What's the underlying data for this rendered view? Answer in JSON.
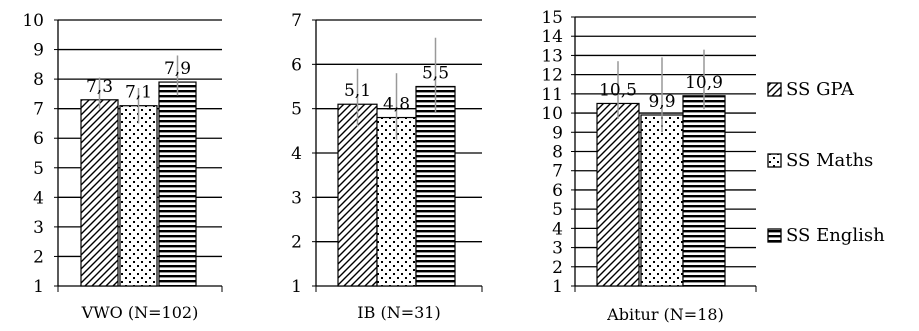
{
  "chart_data": [
    {
      "type": "bar",
      "categories": [
        "SS GPA",
        "SS Maths",
        "SS English"
      ],
      "values": [
        7.3,
        7.1,
        7.9
      ],
      "value_labels": [
        "7,3",
        "7,1",
        "7,9"
      ],
      "xlabel": "VWO (N=102)",
      "ylim": [
        1,
        10
      ],
      "yticks": [
        "1",
        "2",
        "3",
        "4",
        "5",
        "6",
        "7",
        "8",
        "9",
        "10"
      ],
      "error_bars": true,
      "grid": true
    },
    {
      "type": "bar",
      "categories": [
        "SS GPA",
        "SS Maths",
        "SS English"
      ],
      "values": [
        5.1,
        4.8,
        5.5
      ],
      "value_labels": [
        "5,1",
        "4,8",
        "5,5"
      ],
      "xlabel": "IB (N=31)",
      "ylim": [
        1,
        7
      ],
      "yticks": [
        "1",
        "2",
        "3",
        "4",
        "5",
        "6",
        "7"
      ],
      "error_bars": true,
      "grid": true
    },
    {
      "type": "bar",
      "categories": [
        "SS GPA",
        "SS Maths",
        "SS English"
      ],
      "values": [
        10.5,
        9.9,
        10.9
      ],
      "value_labels": [
        "10,5",
        "9,9",
        "10,9"
      ],
      "xlabel": "Abitur (N=18)",
      "ylim": [
        1,
        15
      ],
      "yticks": [
        "1",
        "2",
        "3",
        "4",
        "5",
        "6",
        "7",
        "8",
        "9",
        "10",
        "11",
        "12",
        "13",
        "14",
        "15"
      ],
      "error_bars": true,
      "grid": true
    }
  ],
  "legend": {
    "placement": "right",
    "items": [
      {
        "label": "SS GPA",
        "pattern": "diagonal"
      },
      {
        "label": "SS Maths",
        "pattern": "dots"
      },
      {
        "label": "SS English",
        "pattern": "horizontal"
      }
    ]
  },
  "colors": {
    "bar_fill": "#ffffff",
    "bar_stroke": "#000000",
    "error_bar": "#999999",
    "grid": "#000000"
  }
}
